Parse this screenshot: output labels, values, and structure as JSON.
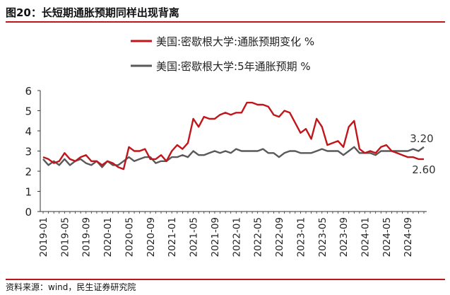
{
  "figure": {
    "title": "图20：长短期通胀预期同样出现背离",
    "source": "资料来源：wind，民生证券研究院"
  },
  "chart_data": {
    "type": "line",
    "x": [
      "2019-01",
      "2019-02",
      "2019-03",
      "2019-04",
      "2019-05",
      "2019-06",
      "2019-07",
      "2019-08",
      "2019-09",
      "2019-10",
      "2019-11",
      "2019-12",
      "2020-01",
      "2020-02",
      "2020-03",
      "2020-04",
      "2020-05",
      "2020-06",
      "2020-07",
      "2020-08",
      "2020-09",
      "2020-10",
      "2020-11",
      "2020-12",
      "2021-01",
      "2021-02",
      "2021-03",
      "2021-04",
      "2021-05",
      "2021-06",
      "2021-07",
      "2021-08",
      "2021-09",
      "2021-10",
      "2021-11",
      "2021-12",
      "2022-01",
      "2022-02",
      "2022-03",
      "2022-04",
      "2022-05",
      "2022-06",
      "2022-07",
      "2022-08",
      "2022-09",
      "2022-10",
      "2022-11",
      "2022-12",
      "2023-01",
      "2023-02",
      "2023-03",
      "2023-04",
      "2023-05",
      "2023-06",
      "2023-07",
      "2023-08",
      "2023-09",
      "2023-10",
      "2023-11",
      "2023-12",
      "2024-01",
      "2024-02",
      "2024-03",
      "2024-04",
      "2024-05",
      "2024-06",
      "2024-07",
      "2024-08",
      "2024-09",
      "2024-10",
      "2024-11",
      "2024-12"
    ],
    "x_tick_labels": [
      "2019-01",
      "2019-05",
      "2019-09",
      "2020-01",
      "2020-05",
      "2020-09",
      "2021-01",
      "2021-05",
      "2021-09",
      "2022-01",
      "2022-05",
      "2022-09",
      "2023-01",
      "2023-05",
      "2023-09",
      "2024-01",
      "2024-05",
      "2024-09"
    ],
    "ylim": [
      0,
      6
    ],
    "y_ticks": [
      0,
      1,
      2,
      3,
      4,
      5,
      6
    ],
    "legend_position": "top-center",
    "grid": false,
    "series": [
      {
        "name": "美国:密歇根大学:通胀预期变化 %",
        "color": "#c0161b",
        "values": [
          2.7,
          2.6,
          2.4,
          2.5,
          2.9,
          2.6,
          2.5,
          2.7,
          2.8,
          2.5,
          2.5,
          2.3,
          2.5,
          2.4,
          2.2,
          2.1,
          3.2,
          3.0,
          3.0,
          3.1,
          2.6,
          2.6,
          2.8,
          2.5,
          3.0,
          3.3,
          3.1,
          3.4,
          4.6,
          4.2,
          4.7,
          4.6,
          4.6,
          4.8,
          4.9,
          4.8,
          4.9,
          4.9,
          5.4,
          5.4,
          5.3,
          5.3,
          5.2,
          4.8,
          4.7,
          5.0,
          4.9,
          4.4,
          3.9,
          4.1,
          3.6,
          4.6,
          4.2,
          3.3,
          3.4,
          3.5,
          3.2,
          4.2,
          4.5,
          3.1,
          2.9,
          3.0,
          2.9,
          3.2,
          3.3,
          3.0,
          2.9,
          2.8,
          2.7,
          2.7,
          2.6,
          2.6
        ],
        "end_label": "2.60"
      },
      {
        "name": "美国:密歇根大学:5年通胀预期 %",
        "color": "#595959",
        "values": [
          2.6,
          2.3,
          2.5,
          2.3,
          2.6,
          2.3,
          2.5,
          2.6,
          2.4,
          2.3,
          2.5,
          2.2,
          2.5,
          2.3,
          2.3,
          2.5,
          2.7,
          2.5,
          2.6,
          2.7,
          2.7,
          2.4,
          2.5,
          2.5,
          2.7,
          2.7,
          2.8,
          2.7,
          3.0,
          2.8,
          2.8,
          2.9,
          3.0,
          2.9,
          3.0,
          2.9,
          3.1,
          3.0,
          3.0,
          3.0,
          3.0,
          3.1,
          2.9,
          2.9,
          2.7,
          2.9,
          3.0,
          3.0,
          2.9,
          2.9,
          2.9,
          3.0,
          3.1,
          3.0,
          3.0,
          3.0,
          2.8,
          3.0,
          3.2,
          2.9,
          2.9,
          2.9,
          2.8,
          3.0,
          3.0,
          3.0,
          3.0,
          3.0,
          3.0,
          3.1,
          3.0,
          3.2
        ],
        "end_label": "3.20"
      }
    ]
  }
}
